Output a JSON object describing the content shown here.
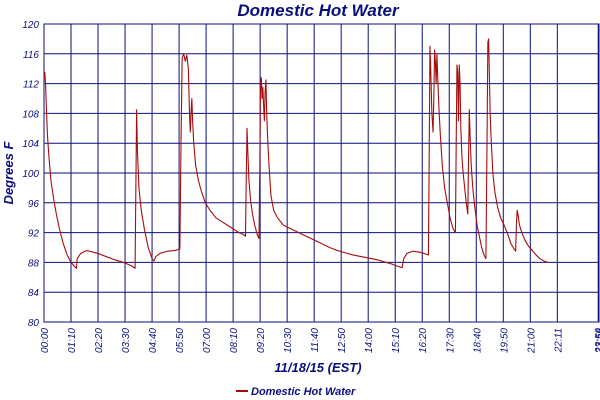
{
  "chart_data": {
    "type": "line",
    "title": "Domestic Hot Water",
    "xlabel": "11/18/15 (EST)",
    "ylabel": "Degrees F",
    "ylim": [
      80,
      120
    ],
    "yticks": [
      80,
      84,
      88,
      92,
      96,
      100,
      104,
      108,
      112,
      116,
      120
    ],
    "xlim": [
      0,
      1438
    ],
    "xticks": [
      {
        "t": 0,
        "label": "00:00"
      },
      {
        "t": 70,
        "label": "01:10"
      },
      {
        "t": 140,
        "label": "02:20"
      },
      {
        "t": 210,
        "label": "03:30"
      },
      {
        "t": 280,
        "label": "04:40"
      },
      {
        "t": 350,
        "label": "05:50"
      },
      {
        "t": 420,
        "label": "07:00"
      },
      {
        "t": 490,
        "label": "08:10"
      },
      {
        "t": 560,
        "label": "09:20"
      },
      {
        "t": 630,
        "label": "10:30"
      },
      {
        "t": 700,
        "label": "11:40"
      },
      {
        "t": 770,
        "label": "12:50"
      },
      {
        "t": 840,
        "label": "14:00"
      },
      {
        "t": 910,
        "label": "15:10"
      },
      {
        "t": 980,
        "label": "16:20"
      },
      {
        "t": 1050,
        "label": "17:30"
      },
      {
        "t": 1120,
        "label": "18:40"
      },
      {
        "t": 1190,
        "label": "19:50"
      },
      {
        "t": 1260,
        "label": "21:00"
      },
      {
        "t": 1330,
        "label": "22:11"
      },
      {
        "t": 1436,
        "label": "23:56"
      },
      {
        "t": 1438,
        "label": "23:58"
      }
    ],
    "grid": true,
    "legend": "bottom",
    "series": [
      {
        "name": "Domestic Hot Water",
        "color": "#a50d0d",
        "points": [
          [
            0,
            112.5
          ],
          [
            2,
            113.5
          ],
          [
            4,
            112
          ],
          [
            6,
            109
          ],
          [
            9,
            105
          ],
          [
            13,
            102
          ],
          [
            18,
            99
          ],
          [
            25,
            96.5
          ],
          [
            32,
            94.5
          ],
          [
            40,
            92.5
          ],
          [
            50,
            90.5
          ],
          [
            60,
            89
          ],
          [
            70,
            88
          ],
          [
            78,
            87.5
          ],
          [
            84,
            87.2
          ],
          [
            86,
            88.5
          ],
          [
            95,
            89.2
          ],
          [
            110,
            89.6
          ],
          [
            125,
            89.4
          ],
          [
            140,
            89.2
          ],
          [
            160,
            88.8
          ],
          [
            180,
            88.4
          ],
          [
            200,
            88.1
          ],
          [
            215,
            87.8
          ],
          [
            228,
            87.5
          ],
          [
            236,
            87.2
          ],
          [
            238,
            98
          ],
          [
            240,
            108.5
          ],
          [
            242,
            103
          ],
          [
            246,
            98
          ],
          [
            252,
            95
          ],
          [
            260,
            92.5
          ],
          [
            270,
            90
          ],
          [
            280,
            88.5
          ],
          [
            285,
            88.2
          ],
          [
            290,
            88.8
          ],
          [
            300,
            89.2
          ],
          [
            320,
            89.5
          ],
          [
            340,
            89.6
          ],
          [
            352,
            89.8
          ],
          [
            355,
            104
          ],
          [
            358,
            115.5
          ],
          [
            362,
            116
          ],
          [
            366,
            115
          ],
          [
            370,
            115.8
          ],
          [
            374,
            114
          ],
          [
            377,
            108
          ],
          [
            379,
            105.5
          ],
          [
            381,
            108
          ],
          [
            383,
            110
          ],
          [
            385,
            107
          ],
          [
            388,
            104
          ],
          [
            393,
            101
          ],
          [
            400,
            99
          ],
          [
            408,
            97.5
          ],
          [
            418,
            96
          ],
          [
            430,
            95
          ],
          [
            445,
            94
          ],
          [
            460,
            93.5
          ],
          [
            475,
            93
          ],
          [
            490,
            92.5
          ],
          [
            505,
            92
          ],
          [
            515,
            91.8
          ],
          [
            522,
            91.5
          ],
          [
            524,
            99
          ],
          [
            526,
            106
          ],
          [
            528,
            103
          ],
          [
            531,
            99
          ],
          [
            535,
            96.5
          ],
          [
            540,
            94.5
          ],
          [
            546,
            93
          ],
          [
            552,
            91.8
          ],
          [
            557,
            91.2
          ],
          [
            559,
            100
          ],
          [
            561,
            112
          ],
          [
            563,
            112.8
          ],
          [
            565,
            110
          ],
          [
            567,
            111.5
          ],
          [
            569,
            109
          ],
          [
            571,
            107
          ],
          [
            573,
            111
          ],
          [
            575,
            112.5
          ],
          [
            577,
            108
          ],
          [
            580,
            104
          ],
          [
            583,
            101
          ],
          [
            588,
            97
          ],
          [
            595,
            95
          ],
          [
            605,
            94
          ],
          [
            620,
            93
          ],
          [
            640,
            92.5
          ],
          [
            660,
            92
          ],
          [
            680,
            91.5
          ],
          [
            700,
            91
          ],
          [
            720,
            90.5
          ],
          [
            740,
            90
          ],
          [
            760,
            89.6
          ],
          [
            780,
            89.3
          ],
          [
            800,
            89
          ],
          [
            820,
            88.8
          ],
          [
            840,
            88.6
          ],
          [
            860,
            88.4
          ],
          [
            880,
            88.1
          ],
          [
            900,
            87.8
          ],
          [
            915,
            87.5
          ],
          [
            928,
            87.3
          ],
          [
            932,
            88.5
          ],
          [
            940,
            89.2
          ],
          [
            955,
            89.5
          ],
          [
            970,
            89.4
          ],
          [
            985,
            89.2
          ],
          [
            996,
            89
          ],
          [
            998,
            102
          ],
          [
            1000,
            117
          ],
          [
            1002,
            114
          ],
          [
            1005,
            108
          ],
          [
            1008,
            105.5
          ],
          [
            1010,
            110
          ],
          [
            1012,
            116.5
          ],
          [
            1014,
            115
          ],
          [
            1016,
            112
          ],
          [
            1018,
            116
          ],
          [
            1020,
            113
          ],
          [
            1023,
            109
          ],
          [
            1027,
            105
          ],
          [
            1032,
            101
          ],
          [
            1038,
            98
          ],
          [
            1045,
            96
          ],
          [
            1052,
            94
          ],
          [
            1060,
            92.5
          ],
          [
            1066,
            92
          ],
          [
            1068,
            104
          ],
          [
            1070,
            114.5
          ],
          [
            1072,
            113.5
          ],
          [
            1074,
            107
          ],
          [
            1076,
            114.5
          ],
          [
            1078,
            112
          ],
          [
            1080,
            106
          ],
          [
            1083,
            102
          ],
          [
            1086,
            100
          ],
          [
            1090,
            98
          ],
          [
            1094,
            96
          ],
          [
            1098,
            94.5
          ],
          [
            1100,
            102
          ],
          [
            1102,
            108.5
          ],
          [
            1104,
            105
          ],
          [
            1107,
            101
          ],
          [
            1111,
            98
          ],
          [
            1116,
            95.5
          ],
          [
            1122,
            93
          ],
          [
            1128,
            91.5
          ],
          [
            1134,
            90
          ],
          [
            1140,
            89
          ],
          [
            1145,
            88.5
          ],
          [
            1148,
            105
          ],
          [
            1150,
            117.5
          ],
          [
            1152,
            118
          ],
          [
            1154,
            113
          ],
          [
            1156,
            108
          ],
          [
            1159,
            104
          ],
          [
            1163,
            100
          ],
          [
            1168,
            97.5
          ],
          [
            1175,
            95.5
          ],
          [
            1183,
            94
          ],
          [
            1192,
            93
          ],
          [
            1200,
            92
          ],
          [
            1210,
            90.5
          ],
          [
            1218,
            89.8
          ],
          [
            1222,
            89.5
          ],
          [
            1224,
            93
          ],
          [
            1226,
            95
          ],
          [
            1228,
            94.5
          ],
          [
            1232,
            93
          ],
          [
            1238,
            92
          ],
          [
            1246,
            91
          ],
          [
            1255,
            90.2
          ],
          [
            1265,
            89.6
          ],
          [
            1275,
            89
          ],
          [
            1285,
            88.5
          ],
          [
            1295,
            88.2
          ],
          [
            1305,
            88
          ]
        ]
      }
    ]
  }
}
